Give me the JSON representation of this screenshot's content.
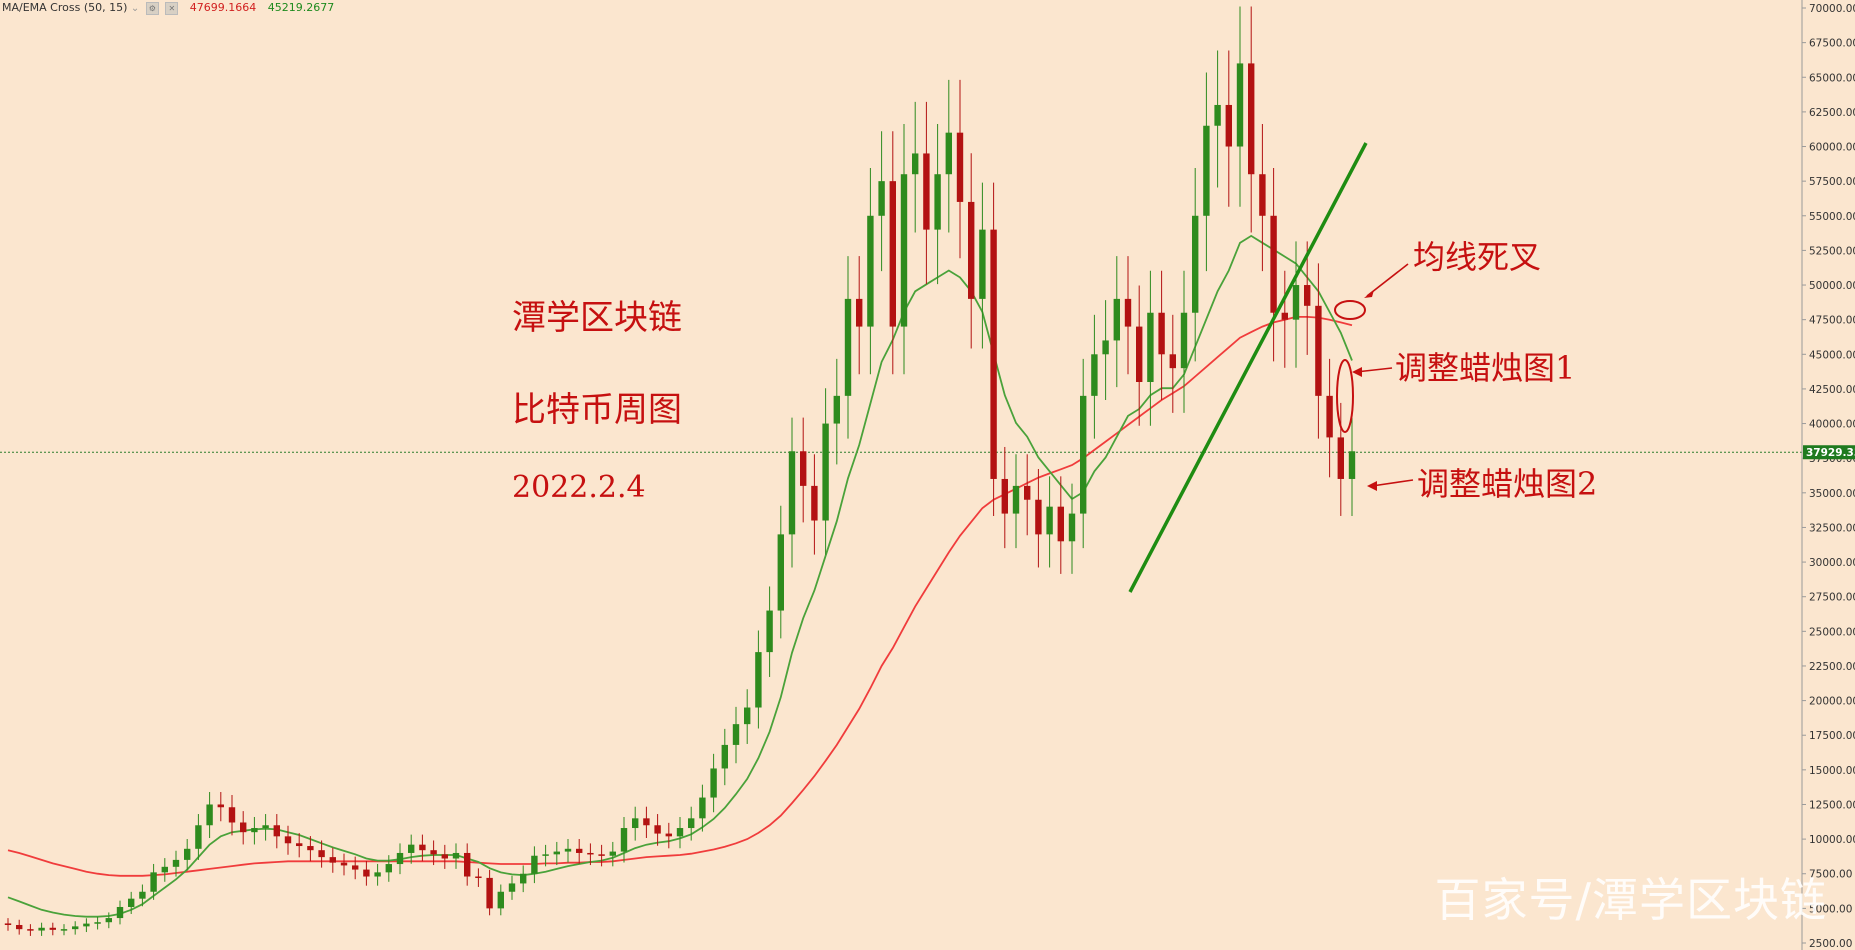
{
  "indicator": {
    "name": "MA/EMA Cross (50, 15)",
    "value_red": "47699.1664",
    "value_green": "45219.2677"
  },
  "annotations": {
    "title": "潭学区块链",
    "subtitle": "比特币周图",
    "date": "2022.2.4",
    "death_cross": "均线死叉",
    "candle1": "调整蜡烛图1",
    "candle2": "调整蜡烛图2"
  },
  "watermark": "百家号/潭学区块链",
  "colors": {
    "background": "#fbe6cf",
    "up": "#2e8b1e",
    "down": "#b31212",
    "ma_slow": "#f03c3c",
    "ma_fast": "#4aa23a",
    "annotation": "#c61010"
  },
  "chart_data": {
    "type": "candlestick",
    "ylim": [
      2500,
      70000
    ],
    "yticks": [
      "70000.00",
      "67500.00",
      "65000.00",
      "62500.00",
      "60000.00",
      "57500.00",
      "55000.00",
      "52500.00",
      "50000.00",
      "47500.00",
      "45000.00",
      "42500.00",
      "40000.00",
      "37500.00",
      "35000.00",
      "32500.00",
      "30000.00",
      "27500.00",
      "25000.00",
      "22500.00",
      "20000.00",
      "17500.00",
      "15000.00",
      "12500.00",
      "10000.00",
      "7500.00",
      "5000.00",
      "2500.00"
    ],
    "last_price": "37929.33",
    "close": [
      3800,
      3500,
      3400,
      3600,
      3450,
      3500,
      3700,
      3900,
      4000,
      4300,
      5100,
      5700,
      6200,
      7600,
      8000,
      8500,
      9300,
      11000,
      12500,
      12300,
      11200,
      10500,
      10800,
      11000,
      10200,
      9700,
      9500,
      9200,
      8700,
      8300,
      8100,
      7800,
      7300,
      7600,
      8200,
      9000,
      9600,
      9200,
      8900,
      8600,
      9000,
      7300,
      7200,
      5000,
      6200,
      6800,
      7500,
      8800,
      8900,
      9100,
      9300,
      9000,
      8900,
      8800,
      9100,
      10800,
      11500,
      11000,
      10400,
      10200,
      10800,
      11500,
      13000,
      15100,
      16800,
      18300,
      19500,
      23500,
      26500,
      32000,
      38000,
      35500,
      33000,
      40000,
      42000,
      49000,
      47000,
      55000,
      57500,
      47000,
      58000,
      59500,
      54000,
      58000,
      61000,
      56000,
      49000,
      54000,
      36000,
      33500,
      35500,
      34500,
      32000,
      34000,
      31500,
      33500,
      42000,
      45000,
      46000,
      49000,
      47000,
      43000,
      48000,
      45000,
      44000,
      48000,
      55000,
      61500,
      63000,
      60000,
      66000,
      58000,
      55000,
      48000,
      47500,
      50000,
      48500,
      42000,
      39000,
      36000,
      38000
    ],
    "ma_fast": [
      5800,
      5500,
      5200,
      4900,
      4700,
      4550,
      4450,
      4400,
      4400,
      4450,
      4600,
      4900,
      5300,
      5900,
      6500,
      7100,
      7800,
      8700,
      9600,
      10200,
      10500,
      10600,
      10700,
      10750,
      10700,
      10500,
      10300,
      10000,
      9700,
      9400,
      9150,
      8900,
      8600,
      8450,
      8450,
      8550,
      8700,
      8800,
      8850,
      8850,
      8850,
      8600,
      8350,
      7900,
      7600,
      7450,
      7400,
      7500,
      7650,
      7850,
      8050,
      8200,
      8350,
      8450,
      8650,
      9000,
      9350,
      9600,
      9750,
      9850,
      10050,
      10350,
      10850,
      11450,
      12250,
      13250,
      14350,
      15850,
      17750,
      20250,
      23450,
      25950,
      27950,
      30450,
      32950,
      36050,
      38450,
      41450,
      44450,
      46050,
      48050,
      49550,
      50050,
      50550,
      51050,
      50550,
      49550,
      48050,
      45050,
      42050,
      40050,
      39050,
      37550,
      36550,
      35550,
      34550,
      35050,
      36550,
      37550,
      39050,
      40550,
      41050,
      42050,
      42550,
      42550,
      43550,
      45550,
      47550,
      49550,
      51050,
      53050,
      53550,
      53050,
      52550,
      52050,
      51550,
      50550,
      49550,
      48050,
      46550,
      44550
    ],
    "ma_slow": [
      9200,
      9000,
      8750,
      8500,
      8250,
      8050,
      7850,
      7650,
      7500,
      7400,
      7350,
      7350,
      7350,
      7400,
      7450,
      7550,
      7650,
      7750,
      7850,
      7950,
      8050,
      8150,
      8250,
      8300,
      8350,
      8400,
      8400,
      8400,
      8400,
      8400,
      8400,
      8400,
      8400,
      8400,
      8400,
      8400,
      8400,
      8400,
      8400,
      8400,
      8400,
      8350,
      8300,
      8250,
      8200,
      8200,
      8200,
      8200,
      8250,
      8250,
      8300,
      8300,
      8350,
      8350,
      8400,
      8500,
      8600,
      8700,
      8750,
      8800,
      8850,
      8950,
      9100,
      9250,
      9450,
      9700,
      10000,
      10450,
      11000,
      11700,
      12600,
      13550,
      14550,
      15650,
      16800,
      18100,
      19400,
      20900,
      22500,
      23800,
      25300,
      26800,
      28100,
      29400,
      30700,
      31900,
      32900,
      33900,
      34500,
      34900,
      35300,
      35700,
      36100,
      36400,
      36700,
      37000,
      37500,
      38100,
      38700,
      39300,
      39900,
      40500,
      41100,
      41700,
      42200,
      42700,
      43400,
      44100,
      44800,
      45500,
      46200,
      46600,
      47000,
      47300,
      47500,
      47700,
      47700,
      47650,
      47500,
      47300,
      47100
    ]
  }
}
